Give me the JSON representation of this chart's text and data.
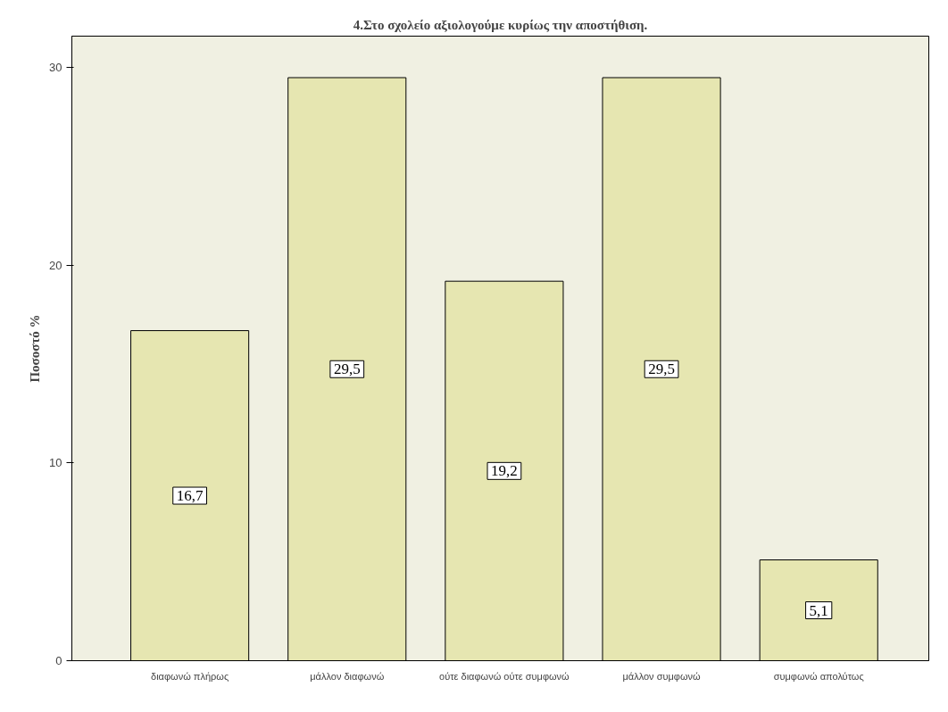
{
  "chart_data": {
    "type": "bar",
    "title": "4.Στο σχολείο αξιολογούμε κυρίως την αποστήθιση.",
    "ylabel": "Ποσοστό %",
    "categories": [
      "διαφωνώ πλήρως",
      "μάλλον διαφωνώ",
      "ούτε διαφωνώ ούτε συμφωνώ",
      "μάλλον συμφωνώ",
      "συμφωνώ απολύτως"
    ],
    "values": [
      16.7,
      29.5,
      19.2,
      29.5,
      5.1
    ],
    "value_labels": [
      "16,7",
      "29,5",
      "19,2",
      "29,5",
      "5,1"
    ],
    "color": "#e6e6b1",
    "ylim": [
      0,
      31.6
    ],
    "yticks": [
      0,
      10,
      20,
      30
    ],
    "grid": false
  }
}
